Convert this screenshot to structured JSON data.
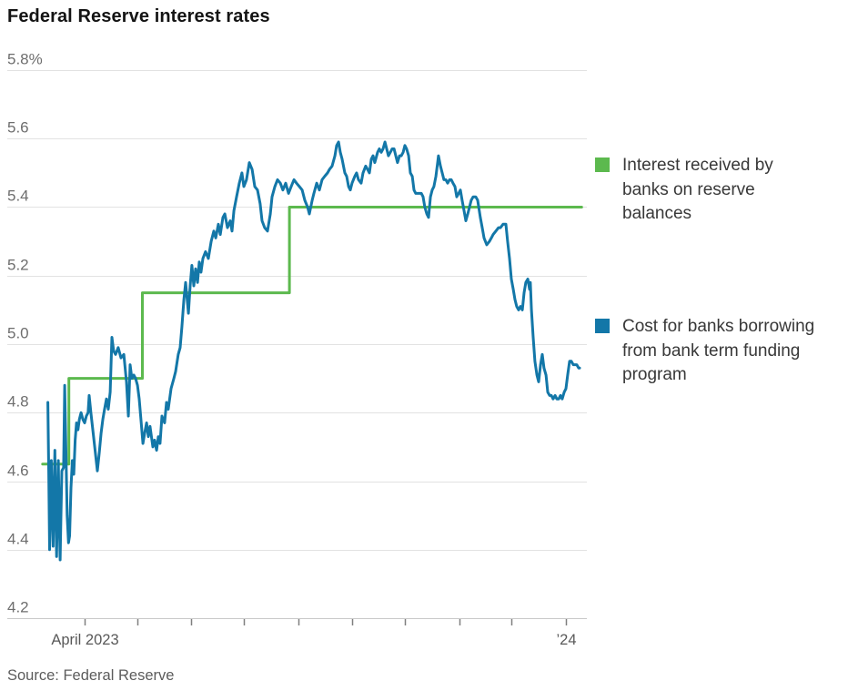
{
  "page": {
    "title": "Federal Reserve interest rates",
    "source": "Source: Federal Reserve"
  },
  "legend": {
    "items": [
      {
        "name": "reserve-balances",
        "color": "#5cb94e",
        "label": "Interest received by banks on reserve balances",
        "lines": [
          "Interest received by",
          "banks on reserve",
          "balances"
        ]
      },
      {
        "name": "btfp",
        "color": "#1377a8",
        "label": "Cost for banks borrowing from bank term funding program",
        "lines": [
          "Cost for banks borrowing",
          "from bank term funding",
          "program"
        ]
      }
    ]
  },
  "chart_data": {
    "type": "line",
    "title": "Federal Reserve interest rates",
    "source": "Source: Federal Reserve",
    "grid": true,
    "legend_position": "right",
    "x_axis": {
      "unit": "days since 2023-03-11",
      "range": [
        -3,
        306
      ],
      "ticks": [
        21,
        51,
        82,
        112,
        143,
        174,
        204,
        235,
        265,
        296
      ],
      "tick_labels": [
        "April 2023",
        "",
        "",
        "",
        "",
        "",
        "",
        "",
        "",
        "’24"
      ]
    },
    "y_axis": {
      "unit": "percent",
      "range": [
        4.2,
        5.8
      ],
      "ticks": [
        5.8,
        5.6,
        5.4,
        5.2,
        5.0,
        4.8,
        4.6,
        4.4,
        4.2
      ],
      "tick_labels": [
        "5.8%",
        "5.6",
        "5.4",
        "5.2",
        "5.0",
        "4.8",
        "4.6",
        "4.4",
        "4.2"
      ]
    },
    "series": [
      {
        "name": "Interest received by banks on reserve balances",
        "color": "#5cb94e",
        "style": "step",
        "points": [
          [
            -3,
            4.65
          ],
          [
            12,
            4.65
          ],
          [
            12,
            4.9
          ],
          [
            54,
            4.9
          ],
          [
            54,
            5.15
          ],
          [
            138,
            5.15
          ],
          [
            138,
            5.4
          ],
          [
            305,
            5.4
          ]
        ]
      },
      {
        "name": "Cost for banks borrowing from bank term funding program",
        "color": "#1377a8",
        "style": "line",
        "points": [
          [
            0,
            4.83
          ],
          [
            0.5,
            4.62
          ],
          [
            1,
            4.4
          ],
          [
            1.5,
            4.53
          ],
          [
            2,
            4.66
          ],
          [
            2.5,
            4.52
          ],
          [
            3,
            4.41
          ],
          [
            3.5,
            4.55
          ],
          [
            4,
            4.69
          ],
          [
            4.5,
            4.52
          ],
          [
            5,
            4.38
          ],
          [
            5.5,
            4.52
          ],
          [
            6,
            4.66
          ],
          [
            6.5,
            4.5
          ],
          [
            7,
            4.37
          ],
          [
            7.5,
            4.5
          ],
          [
            8,
            4.63
          ],
          [
            9,
            4.64
          ],
          [
            9.6,
            4.88
          ],
          [
            10.3,
            4.7
          ],
          [
            11,
            4.5
          ],
          [
            11.8,
            4.42
          ],
          [
            12.4,
            4.44
          ],
          [
            13.2,
            4.58
          ],
          [
            14,
            4.66
          ],
          [
            14.8,
            4.62
          ],
          [
            15.6,
            4.72
          ],
          [
            16.4,
            4.77
          ],
          [
            17.2,
            4.75
          ],
          [
            18,
            4.78
          ],
          [
            19,
            4.8
          ],
          [
            20,
            4.78
          ],
          [
            21,
            4.77
          ],
          [
            22,
            4.79
          ],
          [
            23,
            4.8
          ],
          [
            23.6,
            4.85
          ],
          [
            24.6,
            4.8
          ],
          [
            25.7,
            4.75
          ],
          [
            27,
            4.69
          ],
          [
            28.3,
            4.63
          ],
          [
            29.3,
            4.68
          ],
          [
            30.4,
            4.74
          ],
          [
            31.4,
            4.78
          ],
          [
            32.4,
            4.81
          ],
          [
            33.5,
            4.84
          ],
          [
            34.5,
            4.81
          ],
          [
            35.6,
            4.86
          ],
          [
            36.6,
            5.02
          ],
          [
            37.6,
            4.98
          ],
          [
            38.7,
            4.97
          ],
          [
            40.2,
            4.99
          ],
          [
            41.8,
            4.96
          ],
          [
            43.4,
            4.97
          ],
          [
            44.9,
            4.89
          ],
          [
            46,
            4.79
          ],
          [
            47,
            4.94
          ],
          [
            48,
            4.9
          ],
          [
            49.1,
            4.91
          ],
          [
            50.1,
            4.9
          ],
          [
            51.2,
            4.88
          ],
          [
            52.2,
            4.84
          ],
          [
            53.2,
            4.78
          ],
          [
            54.3,
            4.71
          ],
          [
            55.3,
            4.74
          ],
          [
            56.4,
            4.77
          ],
          [
            57.4,
            4.73
          ],
          [
            58.4,
            4.76
          ],
          [
            60,
            4.7
          ],
          [
            61,
            4.72
          ],
          [
            62.1,
            4.69
          ],
          [
            63.1,
            4.73
          ],
          [
            64.1,
            4.71
          ],
          [
            65.2,
            4.79
          ],
          [
            66.7,
            4.77
          ],
          [
            67.8,
            4.83
          ],
          [
            68.8,
            4.81
          ],
          [
            70.4,
            4.87
          ],
          [
            72,
            4.9
          ],
          [
            73,
            4.92
          ],
          [
            74.5,
            4.97
          ],
          [
            75.6,
            4.99
          ],
          [
            76.6,
            5.05
          ],
          [
            77.7,
            5.13
          ],
          [
            78.7,
            5.18
          ],
          [
            80.3,
            5.09
          ],
          [
            81.3,
            5.17
          ],
          [
            82.3,
            5.23
          ],
          [
            83.4,
            5.17
          ],
          [
            84.4,
            5.22
          ],
          [
            85.5,
            5.18
          ],
          [
            86.5,
            5.24
          ],
          [
            87.5,
            5.21
          ],
          [
            88.6,
            5.25
          ],
          [
            90.1,
            5.27
          ],
          [
            91.7,
            5.25
          ],
          [
            93.3,
            5.3
          ],
          [
            94.8,
            5.33
          ],
          [
            95.9,
            5.31
          ],
          [
            97.4,
            5.35
          ],
          [
            98.5,
            5.32
          ],
          [
            100,
            5.37
          ],
          [
            101.1,
            5.38
          ],
          [
            102.6,
            5.34
          ],
          [
            104.2,
            5.36
          ],
          [
            105.2,
            5.33
          ],
          [
            106.3,
            5.39
          ],
          [
            107.8,
            5.43
          ],
          [
            109.4,
            5.47
          ],
          [
            110.9,
            5.5
          ],
          [
            112,
            5.46
          ],
          [
            113.5,
            5.48
          ],
          [
            115.1,
            5.53
          ],
          [
            116.7,
            5.51
          ],
          [
            118.2,
            5.46
          ],
          [
            119.8,
            5.45
          ],
          [
            121.3,
            5.41
          ],
          [
            122.4,
            5.36
          ],
          [
            123.9,
            5.34
          ],
          [
            125.5,
            5.33
          ],
          [
            127.1,
            5.38
          ],
          [
            128.1,
            5.43
          ],
          [
            129.7,
            5.46
          ],
          [
            131.2,
            5.48
          ],
          [
            132.8,
            5.47
          ],
          [
            134.3,
            5.45
          ],
          [
            135.9,
            5.47
          ],
          [
            137.5,
            5.44
          ],
          [
            139,
            5.46
          ],
          [
            140.6,
            5.48
          ],
          [
            142.1,
            5.47
          ],
          [
            143.7,
            5.46
          ],
          [
            145.3,
            5.45
          ],
          [
            146.8,
            5.42
          ],
          [
            148.4,
            5.4
          ],
          [
            149.4,
            5.38
          ],
          [
            151,
            5.42
          ],
          [
            152,
            5.44
          ],
          [
            153.6,
            5.47
          ],
          [
            155.1,
            5.45
          ],
          [
            156.7,
            5.48
          ],
          [
            158.2,
            5.49
          ],
          [
            159.8,
            5.5
          ],
          [
            160.9,
            5.51
          ],
          [
            162.4,
            5.52
          ],
          [
            164,
            5.55
          ],
          [
            165,
            5.58
          ],
          [
            166.1,
            5.59
          ],
          [
            167.1,
            5.56
          ],
          [
            168.1,
            5.54
          ],
          [
            169.7,
            5.5
          ],
          [
            170.7,
            5.49
          ],
          [
            171.8,
            5.46
          ],
          [
            172.8,
            5.45
          ],
          [
            173.8,
            5.47
          ],
          [
            175.4,
            5.49
          ],
          [
            176.4,
            5.5
          ],
          [
            177.5,
            5.48
          ],
          [
            179,
            5.47
          ],
          [
            180.1,
            5.5
          ],
          [
            181.6,
            5.52
          ],
          [
            182.7,
            5.51
          ],
          [
            183.7,
            5.5
          ],
          [
            184.8,
            5.54
          ],
          [
            185.8,
            5.55
          ],
          [
            186.8,
            5.53
          ],
          [
            188.4,
            5.56
          ],
          [
            189.4,
            5.57
          ],
          [
            190.5,
            5.56
          ],
          [
            191.5,
            5.57
          ],
          [
            192.6,
            5.59
          ],
          [
            193.6,
            5.57
          ],
          [
            194.6,
            5.55
          ],
          [
            195.7,
            5.56
          ],
          [
            196.7,
            5.57
          ],
          [
            197.8,
            5.57
          ],
          [
            198.8,
            5.55
          ],
          [
            199.8,
            5.53
          ],
          [
            200.9,
            5.55
          ],
          [
            201.9,
            5.55
          ],
          [
            203,
            5.56
          ],
          [
            204,
            5.58
          ],
          [
            205,
            5.57
          ],
          [
            206.1,
            5.55
          ],
          [
            207.1,
            5.5
          ],
          [
            208.2,
            5.49
          ],
          [
            209.2,
            5.45
          ],
          [
            210.2,
            5.44
          ],
          [
            211.3,
            5.44
          ],
          [
            212.3,
            5.44
          ],
          [
            213.4,
            5.44
          ],
          [
            214.4,
            5.43
          ],
          [
            215.4,
            5.4
          ],
          [
            216.5,
            5.38
          ],
          [
            217.5,
            5.37
          ],
          [
            218.6,
            5.43
          ],
          [
            219.6,
            5.45
          ],
          [
            220.6,
            5.46
          ],
          [
            221.7,
            5.49
          ],
          [
            222.7,
            5.53
          ],
          [
            223.2,
            5.55
          ],
          [
            224.3,
            5.52
          ],
          [
            225.3,
            5.5
          ],
          [
            226.3,
            5.48
          ],
          [
            227.4,
            5.48
          ],
          [
            228.4,
            5.47
          ],
          [
            229.5,
            5.48
          ],
          [
            230.5,
            5.48
          ],
          [
            231.5,
            5.47
          ],
          [
            232.6,
            5.46
          ],
          [
            233.6,
            5.43
          ],
          [
            234.7,
            5.44
          ],
          [
            235.7,
            5.45
          ],
          [
            236.7,
            5.42
          ],
          [
            237.8,
            5.39
          ],
          [
            238.8,
            5.36
          ],
          [
            239.9,
            5.38
          ],
          [
            240.9,
            5.4
          ],
          [
            241.9,
            5.42
          ],
          [
            243,
            5.43
          ],
          [
            244.5,
            5.43
          ],
          [
            245.6,
            5.42
          ],
          [
            247.1,
            5.37
          ],
          [
            248.2,
            5.34
          ],
          [
            249.2,
            5.31
          ],
          [
            250.8,
            5.29
          ],
          [
            252.3,
            5.3
          ],
          [
            253.4,
            5.31
          ],
          [
            254.4,
            5.32
          ],
          [
            256,
            5.33
          ],
          [
            257.5,
            5.34
          ],
          [
            258.6,
            5.34
          ],
          [
            260.1,
            5.35
          ],
          [
            261.7,
            5.35
          ],
          [
            262.7,
            5.3
          ],
          [
            263.8,
            5.25
          ],
          [
            264.8,
            5.19
          ],
          [
            265.9,
            5.16
          ],
          [
            266.9,
            5.13
          ],
          [
            267.9,
            5.11
          ],
          [
            269,
            5.1
          ],
          [
            270,
            5.11
          ],
          [
            271.1,
            5.1
          ],
          [
            272.1,
            5.15
          ],
          [
            273.1,
            5.18
          ],
          [
            274.2,
            5.19
          ],
          [
            275.2,
            5.16
          ],
          [
            275.7,
            5.18
          ],
          [
            276.3,
            5.1
          ],
          [
            277.3,
            5.02
          ],
          [
            278.3,
            4.95
          ],
          [
            279.4,
            4.91
          ],
          [
            280.4,
            4.89
          ],
          [
            281.5,
            4.94
          ],
          [
            282.5,
            4.97
          ],
          [
            283.5,
            4.93
          ],
          [
            284.6,
            4.91
          ],
          [
            285.6,
            4.86
          ],
          [
            286.7,
            4.85
          ],
          [
            287.7,
            4.85
          ],
          [
            288.7,
            4.84
          ],
          [
            289.8,
            4.85
          ],
          [
            290.8,
            4.84
          ],
          [
            291.9,
            4.84
          ],
          [
            292.9,
            4.85
          ],
          [
            293.9,
            4.84
          ],
          [
            295,
            4.86
          ],
          [
            296,
            4.87
          ],
          [
            297,
            4.91
          ],
          [
            298.1,
            4.95
          ],
          [
            299.1,
            4.95
          ],
          [
            300.2,
            4.94
          ],
          [
            301.2,
            4.94
          ],
          [
            302.2,
            4.94
          ],
          [
            303.3,
            4.93
          ],
          [
            303.8,
            4.93
          ]
        ]
      }
    ]
  }
}
